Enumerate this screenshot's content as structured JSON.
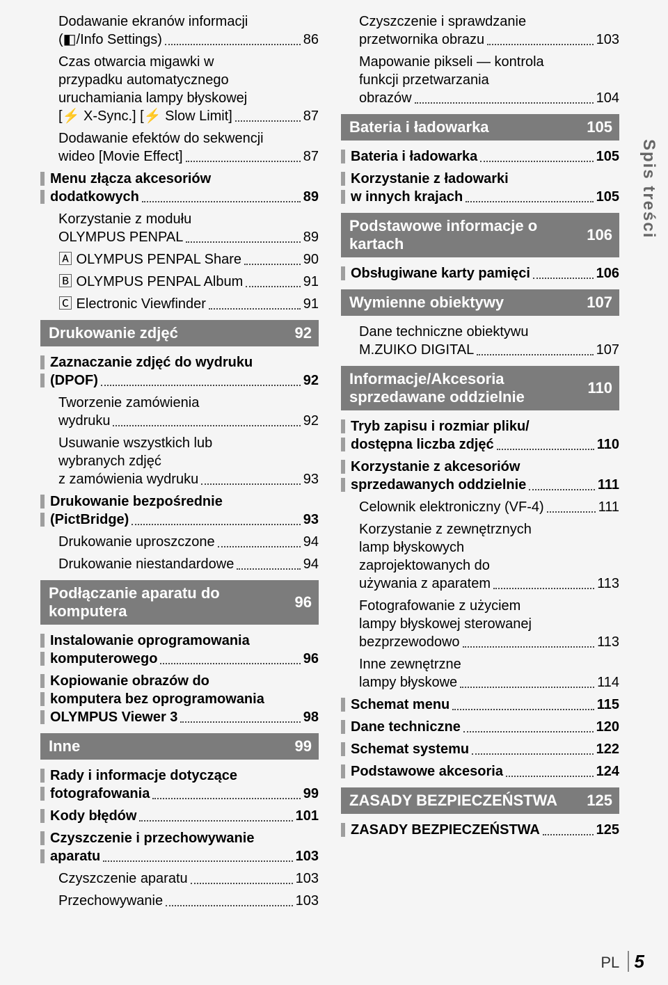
{
  "sidebar": "Spis treści",
  "footer_lang": "PL",
  "footer_page": "5",
  "left_items": [
    {
      "kind": "text",
      "lines": [
        "Dodawanie ekranów informacji",
        "(◧/Info Settings)"
      ],
      "page": "86",
      "sub": true
    },
    {
      "kind": "text",
      "lines": [
        "Czas otwarcia migawki w",
        "przypadku automatycznego",
        "uruchamiania lampy błyskowej",
        "[⚡ X-Sync.] [⚡ Slow Limit]"
      ],
      "page": "87",
      "sub": true
    },
    {
      "kind": "text",
      "lines": [
        "Dodawanie efektów do sekwencji",
        "wideo [Movie Effect]"
      ],
      "page": "87",
      "sub": true
    },
    {
      "kind": "bar",
      "lines": [
        "Menu złącza akcesoriów",
        "dodatkowych"
      ],
      "page": "89",
      "bold": true
    },
    {
      "kind": "text",
      "lines": [
        "Korzystanie z modułu",
        "OLYMPUS PENPAL"
      ],
      "page": "89",
      "sub": true
    },
    {
      "kind": "text",
      "lines": [
        "🄰 OLYMPUS PENPAL Share"
      ],
      "page": "90",
      "sub": true
    },
    {
      "kind": "text",
      "lines": [
        "🄱 OLYMPUS PENPAL Album"
      ],
      "page": "91",
      "sub": true
    },
    {
      "kind": "text",
      "lines": [
        "🄲 Electronic Viewfinder"
      ],
      "page": "91",
      "sub": true
    },
    {
      "kind": "heading",
      "title": "Drukowanie zdjęć",
      "page": "92"
    },
    {
      "kind": "bar",
      "lines": [
        "Zaznaczanie zdjęć do wydruku",
        "(DPOF)"
      ],
      "page": "92",
      "bold": true
    },
    {
      "kind": "text",
      "lines": [
        "Tworzenie zamówienia",
        "wydruku"
      ],
      "page": "92",
      "sub": true
    },
    {
      "kind": "text",
      "lines": [
        "Usuwanie wszystkich lub",
        "wybranych zdjęć",
        "z zamówienia wydruku"
      ],
      "page": "93",
      "sub": true
    },
    {
      "kind": "bar",
      "lines": [
        "Drukowanie bezpośrednie",
        "(PictBridge)"
      ],
      "page": "93",
      "bold": true
    },
    {
      "kind": "text",
      "lines": [
        "Drukowanie uproszczone"
      ],
      "page": "94",
      "sub": true
    },
    {
      "kind": "text",
      "lines": [
        "Drukowanie niestandardowe"
      ],
      "page": "94",
      "sub": true
    },
    {
      "kind": "heading",
      "title": "Podłączanie aparatu do komputera",
      "page": "96"
    },
    {
      "kind": "bar",
      "lines": [
        "Instalowanie oprogramowania",
        "komputerowego"
      ],
      "page": "96",
      "bold": true
    },
    {
      "kind": "bar",
      "lines": [
        "Kopiowanie obrazów do",
        "komputera bez oprogramowania",
        "OLYMPUS Viewer 3"
      ],
      "page": "98",
      "bold": true
    },
    {
      "kind": "heading",
      "title": "Inne",
      "page": "99"
    },
    {
      "kind": "bar",
      "lines": [
        "Rady i informacje dotyczące",
        "fotografowania"
      ],
      "page": "99",
      "bold": true
    },
    {
      "kind": "bar",
      "lines": [
        "Kody błędów"
      ],
      "page": "101",
      "bold": true
    },
    {
      "kind": "bar",
      "lines": [
        "Czyszczenie i przechowywanie",
        "aparatu"
      ],
      "page": "103",
      "bold": true
    },
    {
      "kind": "text",
      "lines": [
        "Czyszczenie aparatu"
      ],
      "page": "103",
      "sub": true
    },
    {
      "kind": "text",
      "lines": [
        "Przechowywanie"
      ],
      "page": "103",
      "sub": true
    }
  ],
  "right_items": [
    {
      "kind": "text",
      "lines": [
        "Czyszczenie i sprawdzanie",
        "przetwornika obrazu"
      ],
      "page": "103",
      "sub": true
    },
    {
      "kind": "text",
      "lines": [
        "Mapowanie pikseli — kontrola",
        "funkcji przetwarzania",
        "obrazów"
      ],
      "page": "104",
      "sub": true
    },
    {
      "kind": "heading",
      "title": "Bateria i ładowarka",
      "page": "105"
    },
    {
      "kind": "bar",
      "lines": [
        "Bateria i ładowarka"
      ],
      "page": "105",
      "bold": true
    },
    {
      "kind": "bar",
      "lines": [
        "Korzystanie z ładowarki",
        "w innych krajach"
      ],
      "page": "105",
      "bold": true
    },
    {
      "kind": "heading",
      "title": "Podstawowe informacje o kartach",
      "page": "106"
    },
    {
      "kind": "bar",
      "lines": [
        "Obsługiwane karty pamięci"
      ],
      "page": "106",
      "bold": true
    },
    {
      "kind": "heading",
      "title": "Wymienne obiektywy",
      "page": "107"
    },
    {
      "kind": "text",
      "lines": [
        "Dane techniczne obiektywu",
        "M.ZUIKO DIGITAL"
      ],
      "page": "107",
      "sub": true
    },
    {
      "kind": "heading",
      "title": "Informacje/Akcesoria sprzedawane oddzielnie",
      "page": "110"
    },
    {
      "kind": "bar",
      "lines": [
        "Tryb zapisu i rozmiar pliku/",
        "dostępna liczba zdjęć"
      ],
      "page": "110",
      "bold": true
    },
    {
      "kind": "bar",
      "lines": [
        "Korzystanie z akcesoriów",
        "sprzedawanych oddzielnie"
      ],
      "page": "111",
      "bold": true
    },
    {
      "kind": "text",
      "lines": [
        "Celownik elektroniczny (VF-4)"
      ],
      "page": "111",
      "sub": true
    },
    {
      "kind": "text",
      "lines": [
        "Korzystanie z zewnętrznych",
        "lamp błyskowych",
        "zaprojektowanych do",
        "używania z aparatem"
      ],
      "page": "113",
      "sub": true
    },
    {
      "kind": "text",
      "lines": [
        "Fotografowanie z użyciem",
        "lampy błyskowej sterowanej",
        "bezprzewodowo"
      ],
      "page": "113",
      "sub": true
    },
    {
      "kind": "text",
      "lines": [
        "Inne zewnętrzne",
        "lampy błyskowe"
      ],
      "page": "114",
      "sub": true
    },
    {
      "kind": "bar",
      "lines": [
        "Schemat menu"
      ],
      "page": "115",
      "bold": true
    },
    {
      "kind": "bar",
      "lines": [
        "Dane techniczne"
      ],
      "page": "120",
      "bold": true
    },
    {
      "kind": "bar",
      "lines": [
        "Schemat systemu"
      ],
      "page": "122",
      "bold": true
    },
    {
      "kind": "bar",
      "lines": [
        "Podstawowe akcesoria"
      ],
      "page": "124",
      "bold": true
    },
    {
      "kind": "heading",
      "title": "ZASADY BEZPIECZEŃSTWA",
      "page": "125"
    },
    {
      "kind": "bar",
      "lines": [
        "ZASADY BEZPIECZEŃSTWA"
      ],
      "page": "125",
      "bold": true
    }
  ]
}
